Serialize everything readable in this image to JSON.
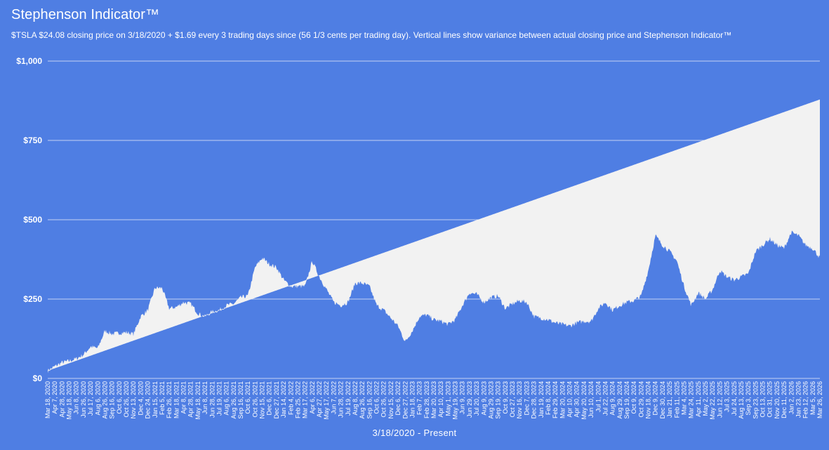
{
  "chart_data": {
    "type": "area",
    "title": "Stephenson Indicator™",
    "subtitle": "$TSLA $24.08 closing price on 3/18/2020 + $1.69 every 3 trading days since (56 1/3 cents per trading day). Vertical lines show variance between actual closing price and Stephenson Indicator™",
    "xlabel": "3/18/2020 - Present",
    "ylabel": "",
    "ylim": [
      0,
      1000
    ],
    "y_ticks": [
      0,
      250,
      500,
      750,
      1000
    ],
    "y_tick_labels": [
      "$0",
      "$250",
      "$500",
      "$750",
      "$1,000"
    ],
    "grid": true,
    "legend": "none",
    "colors": {
      "background": "#4f7ee3",
      "fill": "#f2f2f2",
      "gridline": "#c5d3f3"
    },
    "indicator_line": {
      "start_date": "3/18/2020",
      "start": 24.08,
      "end_date": "Mar 26, 2026",
      "end": 879
    },
    "x_tick_labels": [
      "Mar 18, 2020",
      "Apr 7, 2020",
      "Apr 28, 2020",
      "May 18, 2020",
      "Jun 8, 2020",
      "Jun 26, 2020",
      "Jul 17, 2020",
      "Aug 6, 2020",
      "Aug 26, 2020",
      "Sep 16, 2020",
      "Oct 6, 2020",
      "Oct 26, 2020",
      "Nov 13, 2020",
      "Dec 4, 2020",
      "Dec 24, 2020",
      "Jan 15, 2021",
      "Feb 5, 2021",
      "Feb 26, 2021",
      "Mar 18, 2021",
      "Apr 8, 2021",
      "Apr 28, 2021",
      "May 18, 2021",
      "Jun 8, 2021",
      "Jun 28, 2021",
      "Jul 19, 2021",
      "Aug 6, 2021",
      "Aug 26, 2021",
      "Sep 16, 2021",
      "Oct 6, 2021",
      "Oct 26, 2021",
      "Nov 15, 2021",
      "Dec 6, 2021",
      "Dec 27, 2021",
      "Jan 14, 2022",
      "Feb 4, 2022",
      "Feb 25, 2022",
      "Mar 17, 2022",
      "Apr 6, 2022",
      "Apr 27, 2022",
      "May 17, 2022",
      "Jun 7, 2022",
      "Jun 28, 2022",
      "Jul 19, 2022",
      "Aug 8, 2022",
      "Aug 26, 2022",
      "Sep 16, 2022",
      "Oct 6, 2022",
      "Oct 26, 2022",
      "Nov 15, 2022",
      "Dec 6, 2022",
      "Dec 27, 2022",
      "Jan 18, 2023",
      "Feb 7, 2023",
      "Feb 28, 2023",
      "Mar 20, 2023",
      "Apr 10, 2023",
      "May 1, 2023",
      "May 19, 2023",
      "Jun 9, 2023",
      "Jun 29, 2023",
      "Jul 20, 2023",
      "Aug 9, 2023",
      "Aug 29, 2023",
      "Sep 19, 2023",
      "Oct 9, 2023",
      "Oct 27, 2023",
      "Nov 16, 2023",
      "Dec 7, 2023",
      "Dec 28, 2023",
      "Jan 19, 2024",
      "Feb 8, 2024",
      "Feb 29, 2024",
      "Mar 20, 2024",
      "Apr 10, 2024",
      "Apr 30, 2024",
      "May 20, 2024",
      "Jun 10, 2024",
      "Jul 1, 2024",
      "Jul 22, 2024",
      "Aug 9, 2024",
      "Aug 29, 2024",
      "Sep 19, 2024",
      "Oct 9, 2024",
      "Oct 29, 2024",
      "Nov 18, 2024",
      "Dec 9, 2024",
      "Dec 30, 2024",
      "Jan 21, 2025",
      "Feb 11, 2025",
      "Mar 4, 2025",
      "Mar 24, 2025",
      "Apr 11, 2025",
      "May 2, 2025",
      "May 22, 2025",
      "Jun 12, 2025",
      "Jul 3, 2025",
      "Jul 24, 2025",
      "Aug 13, 2025",
      "Sep 3, 2025",
      "Sep 23, 2025",
      "Oct 13, 2025",
      "Oct 31, 2025",
      "Nov 20, 2025",
      "Dec 11, 2025",
      "Jan 2, 2026",
      "Jan 23, 2026",
      "Feb 12, 2026",
      "Mar 5, 2026",
      "Mar 26, 2026"
    ],
    "series": [
      {
        "kind": "actual closing price (approx.)",
        "points": [
          [
            0,
            24
          ],
          [
            1,
            38
          ],
          [
            2,
            50
          ],
          [
            3,
            55
          ],
          [
            4,
            62
          ],
          [
            5,
            75
          ],
          [
            6,
            100
          ],
          [
            7,
            95
          ],
          [
            8,
            150
          ],
          [
            9,
            140
          ],
          [
            10,
            143
          ],
          [
            11,
            145
          ],
          [
            12,
            140
          ],
          [
            13,
            195
          ],
          [
            14,
            215
          ],
          [
            15,
            285
          ],
          [
            16,
            285
          ],
          [
            17,
            220
          ],
          [
            18,
            225
          ],
          [
            19,
            240
          ],
          [
            20,
            235
          ],
          [
            21,
            205
          ],
          [
            22,
            195
          ],
          [
            23,
            210
          ],
          [
            24,
            215
          ],
          [
            25,
            230
          ],
          [
            26,
            235
          ],
          [
            27,
            255
          ],
          [
            28,
            260
          ],
          [
            29,
            350
          ],
          [
            30,
            380
          ],
          [
            31,
            360
          ],
          [
            32,
            350
          ],
          [
            33,
            310
          ],
          [
            34,
            290
          ],
          [
            35,
            290
          ],
          [
            36,
            290
          ],
          [
            37,
            370
          ],
          [
            38,
            320
          ],
          [
            39,
            280
          ],
          [
            40,
            240
          ],
          [
            41,
            230
          ],
          [
            42,
            240
          ],
          [
            43,
            300
          ],
          [
            44,
            300
          ],
          [
            45,
            290
          ],
          [
            46,
            230
          ],
          [
            47,
            215
          ],
          [
            48,
            190
          ],
          [
            49,
            165
          ],
          [
            50,
            115
          ],
          [
            51,
            150
          ],
          [
            52,
            195
          ],
          [
            53,
            200
          ],
          [
            54,
            185
          ],
          [
            55,
            180
          ],
          [
            56,
            170
          ],
          [
            57,
            185
          ],
          [
            58,
            230
          ],
          [
            59,
            270
          ],
          [
            60,
            265
          ],
          [
            61,
            240
          ],
          [
            62,
            255
          ],
          [
            63,
            260
          ],
          [
            64,
            220
          ],
          [
            65,
            235
          ],
          [
            66,
            245
          ],
          [
            67,
            240
          ],
          [
            68,
            195
          ],
          [
            69,
            190
          ],
          [
            70,
            185
          ],
          [
            71,
            175
          ],
          [
            72,
            170
          ],
          [
            73,
            165
          ],
          [
            74,
            175
          ],
          [
            75,
            180
          ],
          [
            76,
            180
          ],
          [
            77,
            220
          ],
          [
            78,
            240
          ],
          [
            79,
            215
          ],
          [
            80,
            230
          ],
          [
            81,
            240
          ],
          [
            82,
            245
          ],
          [
            83,
            260
          ],
          [
            84,
            340
          ],
          [
            85,
            450
          ],
          [
            86,
            420
          ],
          [
            87,
            400
          ],
          [
            88,
            370
          ],
          [
            89,
            290
          ],
          [
            90,
            230
          ],
          [
            91,
            270
          ],
          [
            92,
            250
          ],
          [
            93,
            280
          ],
          [
            94,
            340
          ],
          [
            95,
            320
          ],
          [
            96,
            310
          ],
          [
            97,
            320
          ],
          [
            98,
            330
          ],
          [
            99,
            400
          ],
          [
            100,
            420
          ],
          [
            101,
            440
          ],
          [
            102,
            420
          ],
          [
            103,
            410
          ],
          [
            104,
            460
          ],
          [
            105,
            450
          ],
          [
            106,
            420
          ],
          [
            107,
            410
          ],
          [
            108,
            380
          ]
        ]
      }
    ]
  }
}
